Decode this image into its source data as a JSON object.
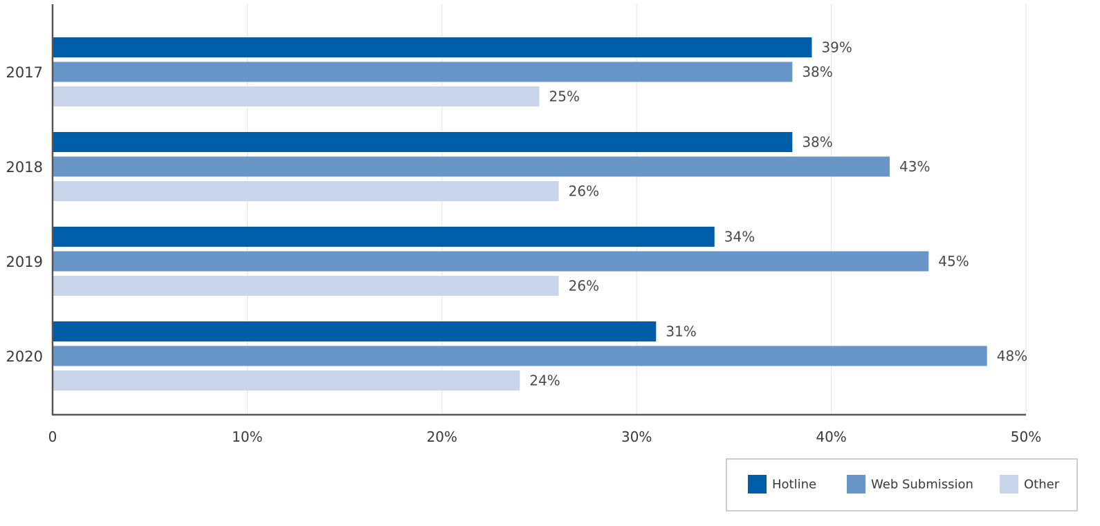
{
  "chart_data": {
    "type": "bar",
    "orientation": "horizontal",
    "categories": [
      "2017",
      "2018",
      "2019",
      "2020"
    ],
    "series": [
      {
        "name": "Hotline",
        "values": [
          39,
          38,
          34,
          31
        ],
        "labels": [
          "39%",
          "38%",
          "34%",
          "31%"
        ],
        "color": "#005ea8"
      },
      {
        "name": "Web Submission",
        "values": [
          38,
          43,
          45,
          48
        ],
        "labels": [
          "38%",
          "43%",
          "45%",
          "48%"
        ],
        "color": "#6996c8"
      },
      {
        "name": "Other",
        "values": [
          25,
          26,
          26,
          24
        ],
        "labels": [
          "25%",
          "26%",
          "26%",
          "24%"
        ],
        "color": "#c8d5ea"
      }
    ],
    "xlim": [
      0,
      50
    ],
    "xticks": [
      0,
      10,
      20,
      30,
      40,
      50
    ],
    "xtick_labels": [
      "0",
      "10%",
      "20%",
      "30%",
      "40%",
      "50%"
    ],
    "grid": true,
    "legend_position": "bottom-right",
    "title": "",
    "xlabel": "",
    "ylabel": ""
  },
  "colors": {
    "axis": "#555555",
    "grid": "#e3e3e3",
    "legend_border": "#cccccc"
  }
}
